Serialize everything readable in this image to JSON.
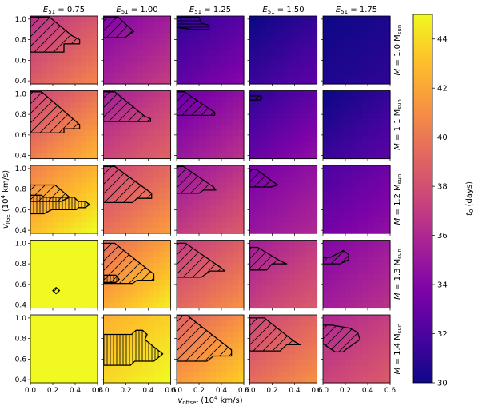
{
  "chart_data": {
    "type": "heatmap",
    "layout": "grid",
    "x_axis": {
      "label_main": "v",
      "label_sub": "offset",
      "label_unit": " (10",
      "label_exp": "4",
      "label_tail": " km/s)",
      "range": [
        0.0,
        0.6
      ],
      "ticks": [
        "0.0",
        "0.2",
        "0.4",
        "0.6"
      ]
    },
    "y_axis": {
      "label_main": "v",
      "label_sub": "IGE",
      "label_unit": " (10",
      "label_exp": "4",
      "label_tail": " km/s)",
      "range": [
        0.37,
        1.03
      ],
      "ticks": [
        "0.4",
        "0.6",
        "0.8",
        "1.0"
      ]
    },
    "columns": [
      {
        "prefix": "E",
        "sub": "51",
        "value": " = 0.75"
      },
      {
        "prefix": "E",
        "sub": "51",
        "value": " = 1.00"
      },
      {
        "prefix": "E",
        "sub": "51",
        "value": " = 1.25"
      },
      {
        "prefix": "E",
        "sub": "51",
        "value": " = 1.50"
      },
      {
        "prefix": "E",
        "sub": "51",
        "value": " = 1.75"
      }
    ],
    "rows": [
      {
        "prefix": "M",
        "value": " = 1.0 M",
        "sub": "sun"
      },
      {
        "prefix": "M",
        "value": " = 1.1 M",
        "sub": "sun"
      },
      {
        "prefix": "M",
        "value": " = 1.2 M",
        "sub": "sun"
      },
      {
        "prefix": "M",
        "value": " = 1.3 M",
        "sub": "sun"
      },
      {
        "prefix": "M",
        "value": " = 1.4 M",
        "sub": "sun"
      }
    ],
    "colorbar": {
      "label_main": "t",
      "label_sub": "0",
      "label_tail": " (days)",
      "range": [
        30,
        45
      ],
      "ticks": [
        "30",
        "32",
        "34",
        "36",
        "38",
        "40",
        "42",
        "44"
      ],
      "colormap": "plasma"
    },
    "panel_t0_top_left": [
      [
        36.5,
        34.0,
        31.0,
        30.0,
        30.0
      ],
      [
        37.5,
        35.5,
        33.0,
        31.0,
        30.0
      ],
      [
        40.5,
        37.5,
        35.0,
        33.5,
        32.0
      ],
      [
        45.0,
        39.5,
        37.0,
        35.5,
        34.0
      ],
      [
        45.0,
        42.5,
        39.0,
        37.5,
        36.0
      ]
    ],
    "panel_t0_bottom_right": [
      [
        40.5,
        37.0,
        34.0,
        32.5,
        31.0
      ],
      [
        42.5,
        39.0,
        36.5,
        34.5,
        32.5
      ],
      [
        45.0,
        41.5,
        38.5,
        36.0,
        34.5
      ],
      [
        45.0,
        44.5,
        41.0,
        38.5,
        36.5
      ],
      [
        45.0,
        45.0,
        43.5,
        41.0,
        38.5
      ]
    ],
    "hatched_regions": [
      {
        "row": 0,
        "col": 0,
        "style": "diagonal",
        "points": [
          [
            0,
            1.02
          ],
          [
            0.17,
            1.02
          ],
          [
            0.37,
            0.84
          ],
          [
            0.44,
            0.8
          ],
          [
            0.44,
            0.76
          ],
          [
            0.3,
            0.76
          ],
          [
            0.3,
            0.68
          ],
          [
            0,
            0.68
          ]
        ]
      },
      {
        "row": 0,
        "col": 1,
        "style": "diagonal",
        "points": [
          [
            0,
            1.02
          ],
          [
            0.13,
            1.02
          ],
          [
            0.27,
            0.88
          ],
          [
            0.19,
            0.82
          ],
          [
            0,
            0.82
          ]
        ]
      },
      {
        "row": 0,
        "col": 2,
        "style": "horizontal",
        "points": [
          [
            0,
            1.02
          ],
          [
            0.2,
            1.02
          ],
          [
            0.22,
            0.96
          ],
          [
            0.29,
            0.94
          ],
          [
            0.29,
            0.9
          ],
          [
            0.14,
            0.9
          ],
          [
            0,
            0.92
          ]
        ]
      },
      {
        "row": 1,
        "col": 0,
        "style": "diagonal",
        "points": [
          [
            0,
            1.02
          ],
          [
            0.1,
            1.02
          ],
          [
            0.44,
            0.7
          ],
          [
            0.44,
            0.66
          ],
          [
            0.3,
            0.66
          ],
          [
            0.3,
            0.62
          ],
          [
            0,
            0.62
          ]
        ]
      },
      {
        "row": 1,
        "col": 1,
        "style": "diagonal",
        "points": [
          [
            0,
            1.02
          ],
          [
            0.1,
            1.02
          ],
          [
            0.37,
            0.78
          ],
          [
            0.42,
            0.76
          ],
          [
            0.42,
            0.73
          ],
          [
            0,
            0.73
          ]
        ]
      },
      {
        "row": 1,
        "col": 2,
        "style": "diagonal",
        "points": [
          [
            0,
            1.02
          ],
          [
            0.07,
            1.02
          ],
          [
            0.27,
            0.87
          ],
          [
            0.34,
            0.82
          ],
          [
            0.34,
            0.79
          ],
          [
            0,
            0.79
          ]
        ]
      },
      {
        "row": 1,
        "col": 3,
        "style": "diagonal",
        "points": [
          [
            0,
            0.98
          ],
          [
            0.09,
            0.98
          ],
          [
            0.11,
            0.96
          ],
          [
            0.09,
            0.94
          ],
          [
            0,
            0.94
          ]
        ]
      },
      {
        "row": 2,
        "col": 0,
        "style": "diagonal",
        "points": [
          [
            0,
            0.84
          ],
          [
            0.22,
            0.84
          ],
          [
            0.35,
            0.72
          ],
          [
            0.27,
            0.68
          ],
          [
            0,
            0.68
          ]
        ]
      },
      {
        "row": 2,
        "col": 0,
        "style": "vertical",
        "points": [
          [
            0,
            0.74
          ],
          [
            0.1,
            0.74
          ],
          [
            0.12,
            0.72
          ],
          [
            0.39,
            0.72
          ],
          [
            0.43,
            0.68
          ],
          [
            0.49,
            0.68
          ],
          [
            0.53,
            0.65
          ],
          [
            0.49,
            0.62
          ],
          [
            0.43,
            0.62
          ],
          [
            0.41,
            0.6
          ],
          [
            0.19,
            0.6
          ],
          [
            0.12,
            0.56
          ],
          [
            0,
            0.56
          ]
        ]
      },
      {
        "row": 2,
        "col": 1,
        "style": "diagonal",
        "points": [
          [
            0,
            1.02
          ],
          [
            0.1,
            1.02
          ],
          [
            0.43,
            0.76
          ],
          [
            0.43,
            0.71
          ],
          [
            0.3,
            0.71
          ],
          [
            0.26,
            0.67
          ],
          [
            0,
            0.67
          ]
        ]
      },
      {
        "row": 2,
        "col": 2,
        "style": "diagonal",
        "points": [
          [
            0,
            1.02
          ],
          [
            0.06,
            1.02
          ],
          [
            0.33,
            0.82
          ],
          [
            0.35,
            0.79
          ],
          [
            0.24,
            0.79
          ],
          [
            0.2,
            0.76
          ],
          [
            0,
            0.76
          ]
        ]
      },
      {
        "row": 2,
        "col": 3,
        "style": "diagonal",
        "points": [
          [
            0,
            0.99
          ],
          [
            0.06,
            0.99
          ],
          [
            0.21,
            0.87
          ],
          [
            0.25,
            0.84
          ],
          [
            0.19,
            0.82
          ],
          [
            0,
            0.82
          ]
        ]
      },
      {
        "row": 3,
        "col": 0,
        "style": "diagonal",
        "points": [
          [
            0.23,
            0.57
          ],
          [
            0.26,
            0.54
          ],
          [
            0.23,
            0.51
          ],
          [
            0.2,
            0.54
          ]
        ]
      },
      {
        "row": 3,
        "col": 1,
        "style": "diagonal",
        "points": [
          [
            0,
            1.0
          ],
          [
            0.1,
            1.0
          ],
          [
            0.45,
            0.7
          ],
          [
            0.45,
            0.64
          ],
          [
            0.3,
            0.64
          ],
          [
            0.26,
            0.61
          ],
          [
            0,
            0.61
          ]
        ]
      },
      {
        "row": 3,
        "col": 1,
        "style": "vertical",
        "points": [
          [
            0,
            0.69
          ],
          [
            0.11,
            0.69
          ],
          [
            0.14,
            0.65
          ],
          [
            0.11,
            0.62
          ],
          [
            0,
            0.62
          ]
        ]
      },
      {
        "row": 3,
        "col": 2,
        "style": "diagonal",
        "points": [
          [
            0,
            1.0
          ],
          [
            0.08,
            1.0
          ],
          [
            0.4,
            0.76
          ],
          [
            0.43,
            0.73
          ],
          [
            0.3,
            0.73
          ],
          [
            0.22,
            0.67
          ],
          [
            0,
            0.67
          ]
        ]
      },
      {
        "row": 3,
        "col": 3,
        "style": "diagonal",
        "points": [
          [
            0,
            0.96
          ],
          [
            0.07,
            0.96
          ],
          [
            0.27,
            0.83
          ],
          [
            0.33,
            0.8
          ],
          [
            0.2,
            0.8
          ],
          [
            0.15,
            0.74
          ],
          [
            0,
            0.74
          ]
        ]
      },
      {
        "row": 3,
        "col": 4,
        "style": "diagonal",
        "points": [
          [
            0,
            0.86
          ],
          [
            0.06,
            0.86
          ],
          [
            0.15,
            0.91
          ],
          [
            0.18,
            0.93
          ],
          [
            0.23,
            0.89
          ],
          [
            0.23,
            0.84
          ],
          [
            0.15,
            0.8
          ],
          [
            0,
            0.8
          ]
        ]
      },
      {
        "row": 4,
        "col": 1,
        "style": "vertical",
        "points": [
          [
            0,
            0.84
          ],
          [
            0.25,
            0.84
          ],
          [
            0.29,
            0.88
          ],
          [
            0.35,
            0.88
          ],
          [
            0.39,
            0.84
          ],
          [
            0.37,
            0.79
          ],
          [
            0.46,
            0.71
          ],
          [
            0.53,
            0.65
          ],
          [
            0.45,
            0.58
          ],
          [
            0.28,
            0.58
          ],
          [
            0.24,
            0.54
          ],
          [
            0,
            0.54
          ]
        ]
      },
      {
        "row": 4,
        "col": 2,
        "style": "diagonal",
        "points": [
          [
            0,
            1.02
          ],
          [
            0.1,
            1.02
          ],
          [
            0.49,
            0.69
          ],
          [
            0.49,
            0.63
          ],
          [
            0.33,
            0.63
          ],
          [
            0.27,
            0.58
          ],
          [
            0,
            0.58
          ]
        ]
      },
      {
        "row": 4,
        "col": 3,
        "style": "diagonal",
        "points": [
          [
            0,
            1.0
          ],
          [
            0.13,
            1.0
          ],
          [
            0.4,
            0.77
          ],
          [
            0.45,
            0.74
          ],
          [
            0.33,
            0.74
          ],
          [
            0.27,
            0.68
          ],
          [
            0,
            0.68
          ]
        ]
      },
      {
        "row": 4,
        "col": 4,
        "style": "diagonal",
        "points": [
          [
            0,
            0.93
          ],
          [
            0.08,
            0.93
          ],
          [
            0.24,
            0.9
          ],
          [
            0.31,
            0.86
          ],
          [
            0.33,
            0.79
          ],
          [
            0.2,
            0.69
          ],
          [
            0.18,
            0.67
          ],
          [
            0.11,
            0.67
          ],
          [
            0,
            0.75
          ]
        ]
      }
    ]
  }
}
